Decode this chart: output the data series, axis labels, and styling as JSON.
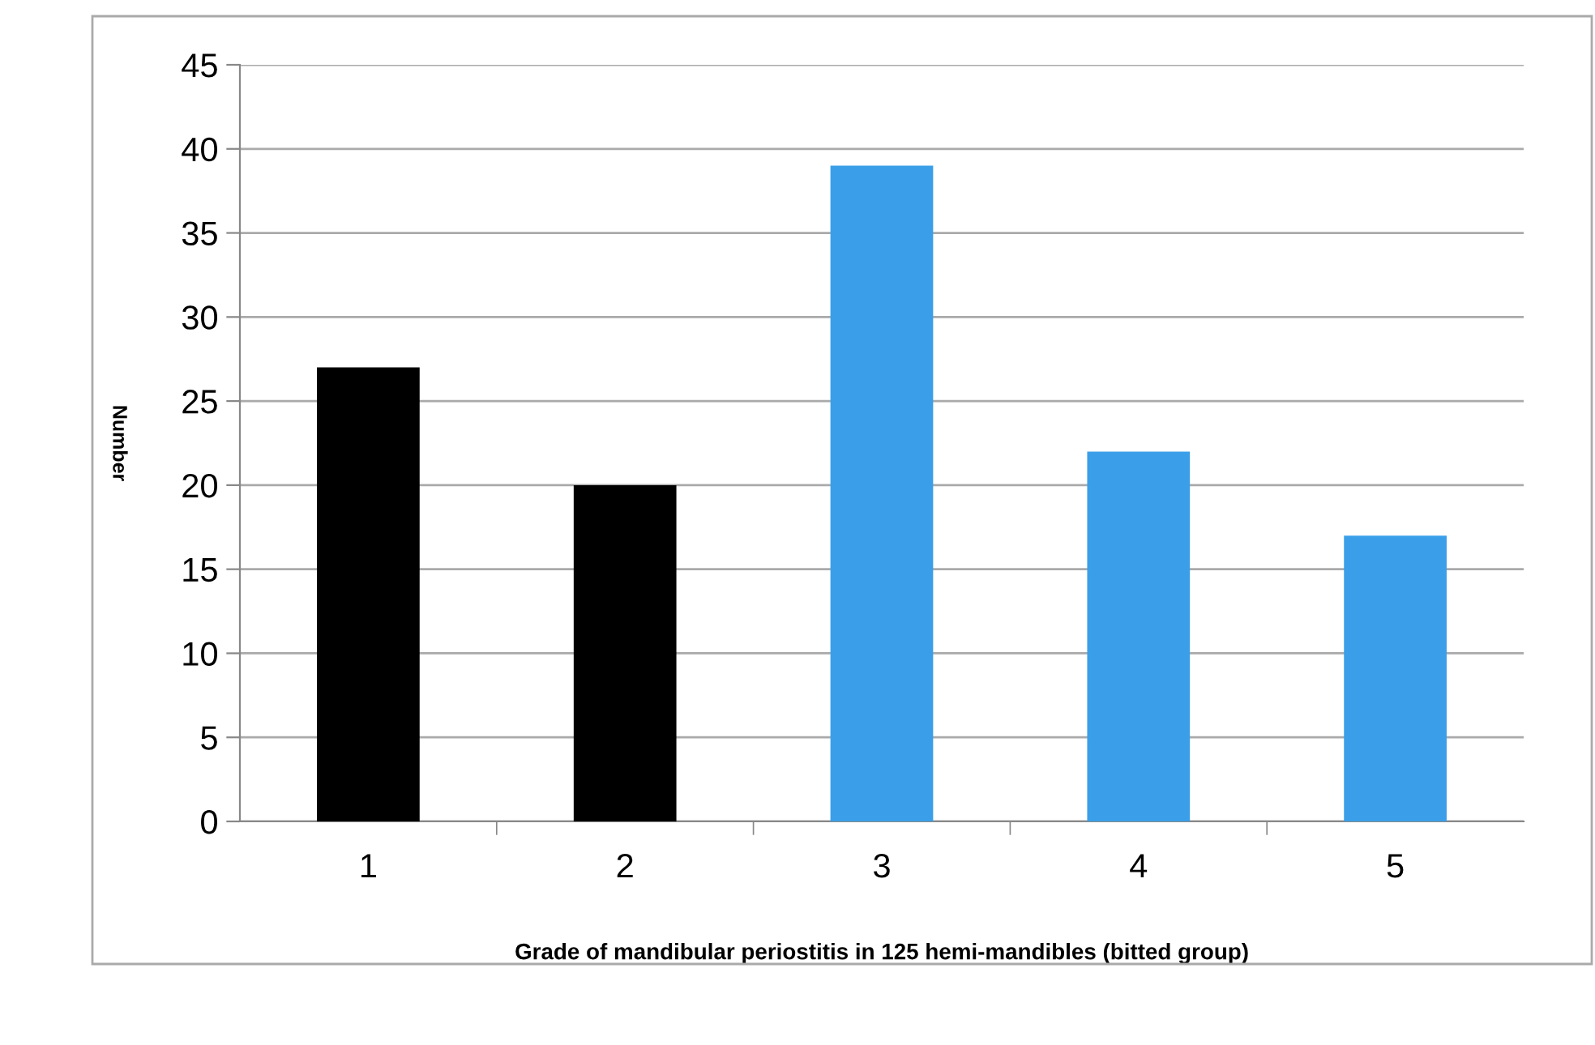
{
  "chart_data": {
    "type": "bar",
    "xlabel": "Grade of mandibular periostitis in 125 hemi-mandibles (bitted group)",
    "ylabel": "Number",
    "categories": [
      "1",
      "2",
      "3",
      "4",
      "5"
    ],
    "values": [
      27,
      20,
      39,
      22,
      17
    ],
    "colors": [
      "#000000",
      "#000000",
      "#3a9fe8",
      "#3a9fe8",
      "#3a9fe8"
    ],
    "ylim": [
      0,
      45
    ],
    "yticks": [
      0,
      5,
      10,
      15,
      20,
      25,
      30,
      35,
      40,
      45
    ],
    "grid": "y"
  }
}
